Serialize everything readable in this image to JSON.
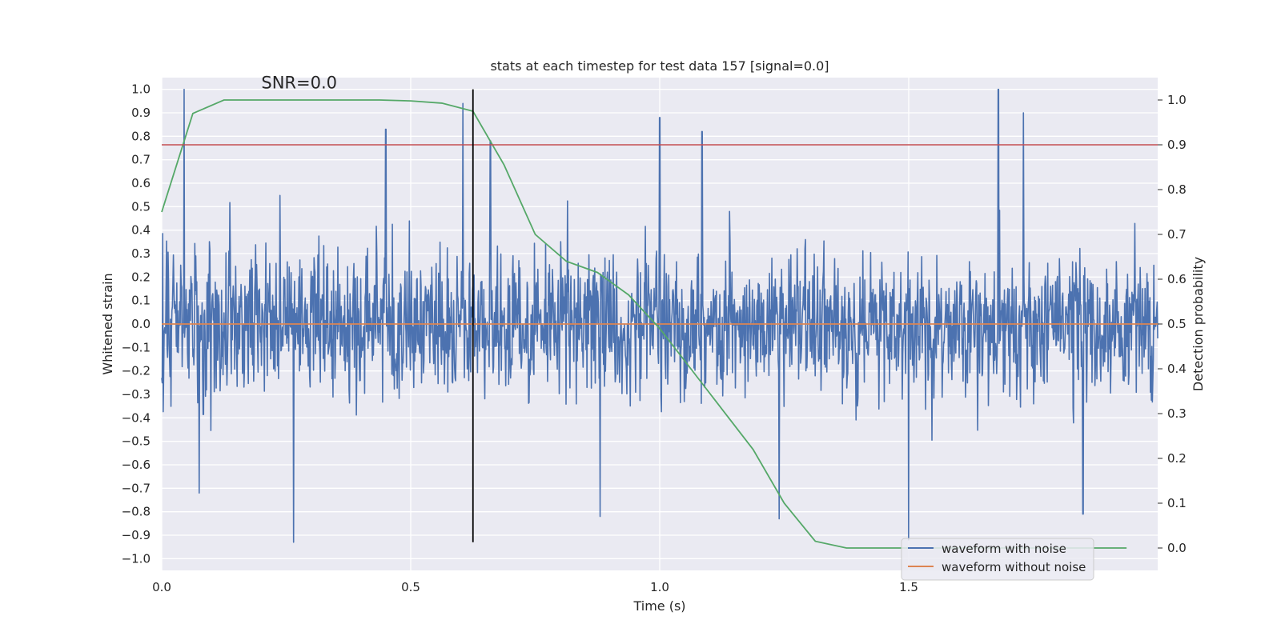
{
  "chart_data": {
    "type": "line",
    "title": "stats at each timestep for test data 157 [signal=0.0]",
    "xlabel": "Time (s)",
    "ylabel_left": "Whitened strain",
    "ylabel_right": "Detection probability",
    "xlim": [
      0.0,
      2.0
    ],
    "ylim_left": [
      -1.05,
      1.05
    ],
    "ylim_right": [
      -0.05,
      1.05
    ],
    "x_ticks": [
      {
        "value": 0.0,
        "label": "0.0"
      },
      {
        "value": 0.5,
        "label": "0.5"
      },
      {
        "value": 1.0,
        "label": "1.0"
      },
      {
        "value": 1.5,
        "label": "1.5"
      }
    ],
    "y_ticks_left": [
      {
        "value": 1.0,
        "label": "1.0"
      },
      {
        "value": 0.9,
        "label": "0.9"
      },
      {
        "value": 0.8,
        "label": "0.8"
      },
      {
        "value": 0.7,
        "label": "0.7"
      },
      {
        "value": 0.6,
        "label": "0.6"
      },
      {
        "value": 0.5,
        "label": "0.5"
      },
      {
        "value": 0.4,
        "label": "0.4"
      },
      {
        "value": 0.3,
        "label": "0.3"
      },
      {
        "value": 0.2,
        "label": "0.2"
      },
      {
        "value": 0.1,
        "label": "0.1"
      },
      {
        "value": 0.0,
        "label": "0.0"
      },
      {
        "value": -0.1,
        "label": "−0.1"
      },
      {
        "value": -0.2,
        "label": "−0.2"
      },
      {
        "value": -0.3,
        "label": "−0.3"
      },
      {
        "value": -0.4,
        "label": "−0.4"
      },
      {
        "value": -0.5,
        "label": "−0.5"
      },
      {
        "value": -0.6,
        "label": "−0.6"
      },
      {
        "value": -0.7,
        "label": "−0.7"
      },
      {
        "value": -0.8,
        "label": "−0.8"
      },
      {
        "value": -0.9,
        "label": "−0.9"
      },
      {
        "value": -1.0,
        "label": "−1.0"
      }
    ],
    "y_ticks_right": [
      {
        "value": 1.0,
        "label": "1.0"
      },
      {
        "value": 0.9,
        "label": "0.9"
      },
      {
        "value": 0.8,
        "label": "0.8"
      },
      {
        "value": 0.7,
        "label": "0.7"
      },
      {
        "value": 0.6,
        "label": "0.6"
      },
      {
        "value": 0.5,
        "label": "0.5"
      },
      {
        "value": 0.4,
        "label": "0.4"
      },
      {
        "value": 0.3,
        "label": "0.3"
      },
      {
        "value": 0.2,
        "label": "0.2"
      },
      {
        "value": 0.1,
        "label": "0.1"
      },
      {
        "value": 0.0,
        "label": "0.0"
      }
    ],
    "annotation": {
      "text": "SNR=0.0",
      "x": 0.2,
      "y": 1.0
    },
    "threshold": {
      "value": 0.9,
      "axis": "right",
      "color": "#c44e52"
    },
    "current_time_marker": {
      "x": 0.625,
      "ymin": -0.93,
      "ymax": 1.0,
      "color": "#000000"
    },
    "series": [
      {
        "name": "waveform with noise",
        "color": "#4c72b0",
        "axis": "left",
        "kind": "noise",
        "x_start": 0.0,
        "x_end": 2.0,
        "points": 2048,
        "sigma": 0.27,
        "seed": 157,
        "peaks": [
          [
            0.045,
            1.0
          ],
          [
            0.605,
            0.94
          ],
          [
            0.45,
            0.83
          ],
          [
            0.66,
            0.78
          ],
          [
            1.0,
            0.88
          ],
          [
            1.085,
            0.82
          ],
          [
            1.68,
            1.0
          ],
          [
            1.73,
            0.9
          ],
          [
            0.265,
            -0.93
          ],
          [
            1.5,
            -0.92
          ],
          [
            1.24,
            -0.83
          ],
          [
            1.85,
            -0.81
          ],
          [
            0.88,
            -0.82
          ],
          [
            0.075,
            -0.72
          ]
        ]
      },
      {
        "name": "waveform without noise",
        "color": "#dd8452",
        "axis": "left",
        "kind": "line",
        "x": [
          0.0,
          2.0
        ],
        "y": [
          0.0,
          0.0
        ]
      },
      {
        "name": "detection probability",
        "color": "#55a868",
        "axis": "right",
        "kind": "line",
        "x": [
          0.0,
          0.0625,
          0.125,
          0.1875,
          0.25,
          0.3125,
          0.375,
          0.4375,
          0.5,
          0.5625,
          0.625,
          0.6875,
          0.75,
          0.8125,
          0.875,
          0.9375,
          1.0,
          1.0625,
          1.125,
          1.1875,
          1.25,
          1.3125,
          1.375,
          1.4375,
          1.5,
          1.5625,
          1.625,
          1.6875,
          1.75,
          1.8125,
          1.875,
          1.9375
        ],
        "y": [
          0.75,
          0.97,
          1.0,
          1.0,
          1.0,
          1.0,
          1.0,
          1.0,
          0.998,
          0.993,
          0.975,
          0.855,
          0.7,
          0.64,
          0.615,
          0.565,
          0.49,
          0.4,
          0.31,
          0.22,
          0.1,
          0.015,
          0.0,
          0.0,
          0.0,
          0.0,
          0.0,
          0.0,
          0.0,
          0.0,
          0.0,
          0.0
        ]
      }
    ],
    "legend": {
      "location": "bottom-right",
      "entries": [
        {
          "label": "waveform with noise",
          "color": "#4c72b0"
        },
        {
          "label": "waveform without noise",
          "color": "#dd8452"
        }
      ]
    }
  }
}
